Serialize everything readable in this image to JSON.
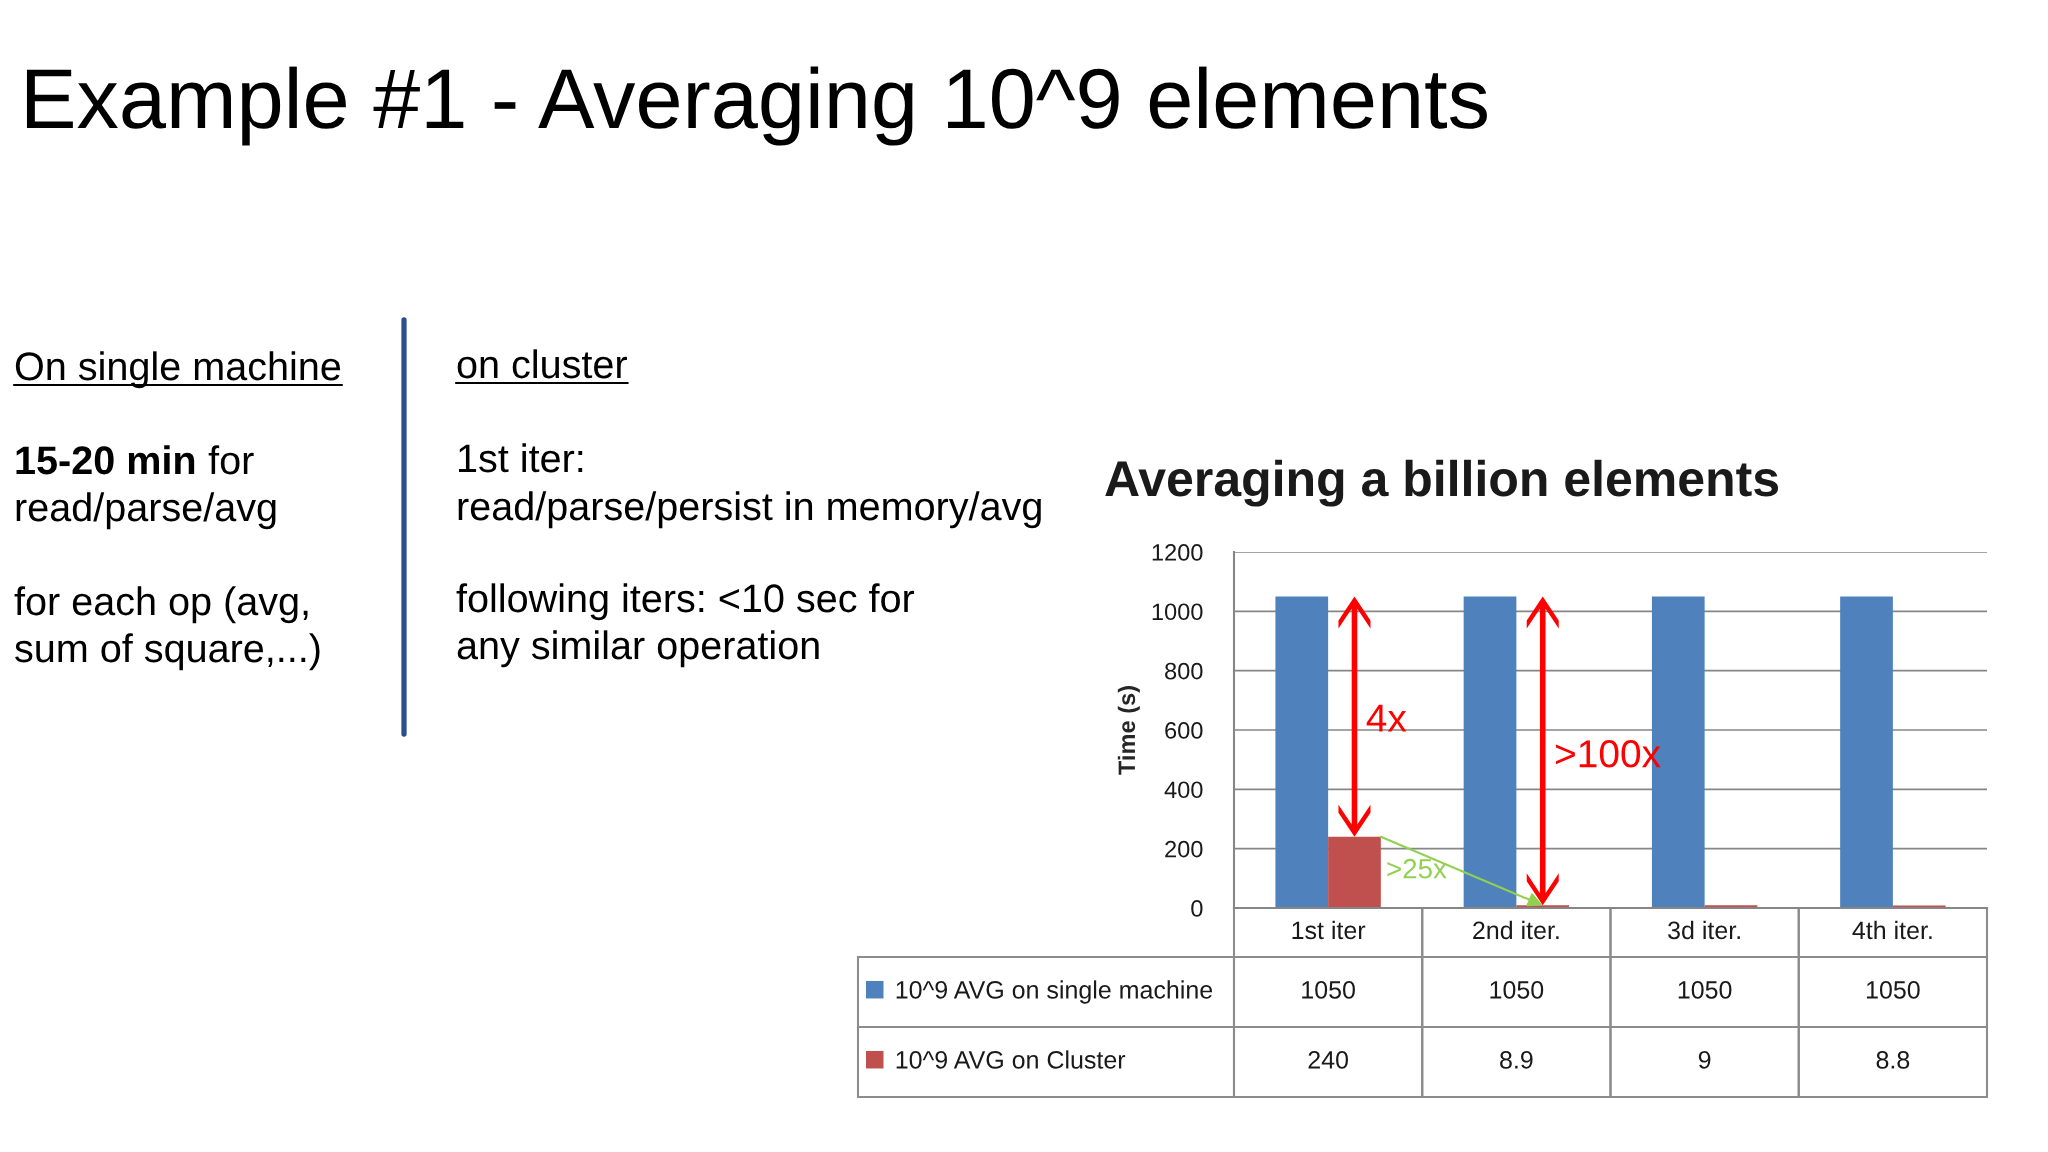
{
  "chart_data": {
    "type": "bar",
    "title": "Example #1 - Averaging 10^9 elements",
    "subtitle": "Averaging a billion elements",
    "ylabel": "Time (s)",
    "categories": [
      "1st iter",
      "2nd iter.",
      "3d iter.",
      "4th iter."
    ],
    "series": [
      {
        "name": "10^9 AVG on single machine",
        "color": "#4f81bd",
        "values": [
          1050,
          1050,
          1050,
          1050
        ]
      },
      {
        "name": "10^9 AVG on Cluster",
        "color": "#c0504d",
        "values": [
          240,
          8.9,
          9,
          8.8
        ]
      }
    ],
    "ylim": [
      0,
      1200
    ],
    "yticks": [
      0,
      200,
      400,
      600,
      800,
      1000,
      1200
    ],
    "grid": "y",
    "legend": "bottom",
    "data_labels": true,
    "annotations": [
      "On single machine",
      "15-20 min",
      "for",
      "read/parse/avg",
      "for each op (avg,",
      "sum of square,...)",
      "on cluster",
      "1st iter:",
      "read/parse/persist in memory/avg",
      "following iters: <10 sec for",
      "any similar operation",
      "4x",
      ">100x",
      {
        "text": ">25x",
        "x": "2nd iter.",
        "y": 8.9
      }
    ]
  }
}
